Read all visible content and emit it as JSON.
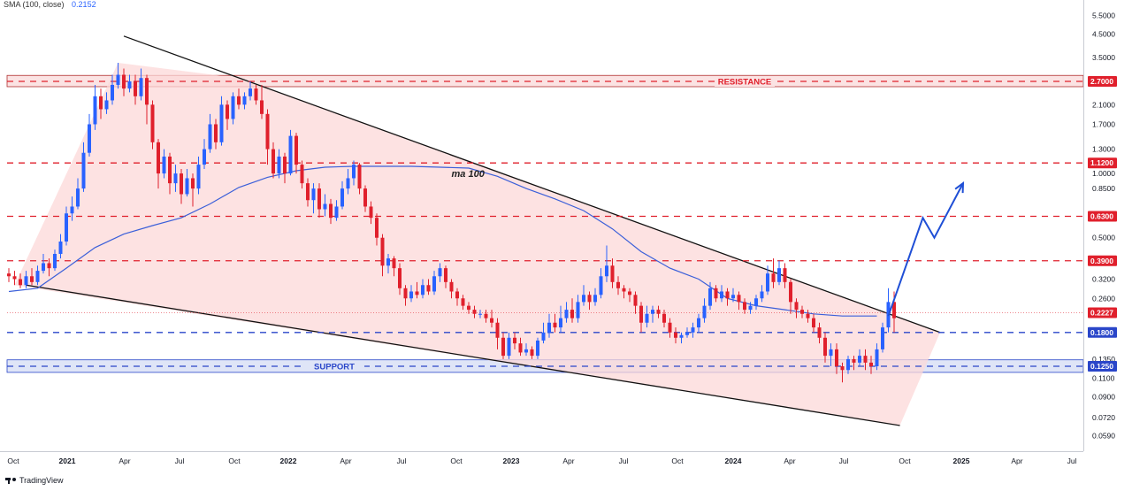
{
  "legend": {
    "label": "SMA (100, close)",
    "value": "0.2152"
  },
  "footer": {
    "brand": "TradingView"
  },
  "colors": {
    "up": "#2962ff",
    "down": "#e0202c",
    "sma": "#3b5fd9",
    "wedge": "#fcd8d8",
    "resistance_zone": "#fbe3e3",
    "support_zone": "#dfe5f7",
    "red_dash": "#e0202c",
    "blue_dash": "#2a46c9"
  },
  "chart_data": {
    "type": "candlestick",
    "title": "",
    "scale": "log",
    "ylim": [
      0.055,
      6.0
    ],
    "x_ticks": [
      "Oct",
      "2021",
      "Apr",
      "Jul",
      "Oct",
      "2022",
      "Apr",
      "Jul",
      "Oct",
      "2023",
      "Apr",
      "Jul",
      "Oct",
      "2024",
      "Apr",
      "Jul",
      "Oct",
      "2025",
      "Apr",
      "Jul"
    ],
    "y_ticks": [
      "5.5000",
      "4.5000",
      "3.5000",
      "2.7000",
      "2.1000",
      "1.7000",
      "1.3000",
      "1.0000",
      "0.8500",
      "0.6300",
      "0.5000",
      "0.3900",
      "0.3200",
      "0.2600",
      "0.2227",
      "0.1800",
      "0.1350",
      "0.1250",
      "0.1100",
      "0.0900",
      "0.0720",
      "0.0590"
    ],
    "price_badges": [
      {
        "label": "2.7000",
        "value": 2.7,
        "kind": "red"
      },
      {
        "label": "1.1200",
        "value": 1.12,
        "kind": "red"
      },
      {
        "label": "0.6300",
        "value": 0.63,
        "kind": "red"
      },
      {
        "label": "0.3900",
        "value": 0.39,
        "kind": "red"
      },
      {
        "label": "0.2227",
        "value": 0.2227,
        "kind": "red"
      },
      {
        "label": "0.1800",
        "value": 0.18,
        "kind": "blue"
      },
      {
        "label": "0.1250",
        "value": 0.125,
        "kind": "blue"
      }
    ],
    "levels": [
      {
        "value": 2.7,
        "kind": "red"
      },
      {
        "value": 1.12,
        "kind": "red"
      },
      {
        "value": 0.63,
        "kind": "red"
      },
      {
        "value": 0.39,
        "kind": "red"
      },
      {
        "value": 0.18,
        "kind": "blue"
      },
      {
        "value": 0.125,
        "kind": "blue"
      }
    ],
    "zones": [
      {
        "label": "RESISTANCE",
        "low": 2.55,
        "high": 2.88,
        "kind": "resistance"
      },
      {
        "label": "SUPPORT",
        "low": 0.117,
        "high": 0.134,
        "kind": "support"
      }
    ],
    "annotations": [
      {
        "label": "ma 100",
        "t": 77,
        "value": 1.0
      }
    ],
    "wedge": {
      "upper": [
        {
          "t": 20,
          "value": 4.4
        },
        {
          "t": 162,
          "value": 0.18
        }
      ],
      "lower": [
        {
          "t": 3,
          "value": 0.3
        },
        {
          "t": 155,
          "value": 0.066
        }
      ],
      "fill": [
        {
          "t": 1,
          "value": 0.3
        },
        {
          "t": 19,
          "value": 3.3
        },
        {
          "t": 40,
          "value": 2.8
        },
        {
          "t": 162,
          "value": 0.18
        },
        {
          "t": 155,
          "value": 0.066
        }
      ]
    },
    "projection": [
      {
        "t": 153,
        "value": 0.215
      },
      {
        "t": 159,
        "value": 0.62
      },
      {
        "t": 161,
        "value": 0.5
      },
      {
        "t": 166,
        "value": 0.9
      }
    ],
    "sma": [
      {
        "t": 0,
        "value": 0.28
      },
      {
        "t": 5,
        "value": 0.29
      },
      {
        "t": 10,
        "value": 0.36
      },
      {
        "t": 15,
        "value": 0.45
      },
      {
        "t": 20,
        "value": 0.52
      },
      {
        "t": 25,
        "value": 0.57
      },
      {
        "t": 30,
        "value": 0.62
      },
      {
        "t": 35,
        "value": 0.72
      },
      {
        "t": 40,
        "value": 0.86
      },
      {
        "t": 45,
        "value": 0.96
      },
      {
        "t": 50,
        "value": 1.03
      },
      {
        "t": 55,
        "value": 1.07
      },
      {
        "t": 60,
        "value": 1.08
      },
      {
        "t": 65,
        "value": 1.08
      },
      {
        "t": 70,
        "value": 1.08
      },
      {
        "t": 75,
        "value": 1.07
      },
      {
        "t": 80,
        "value": 1.06
      },
      {
        "t": 85,
        "value": 0.97
      },
      {
        "t": 90,
        "value": 0.85
      },
      {
        "t": 95,
        "value": 0.76
      },
      {
        "t": 100,
        "value": 0.67
      },
      {
        "t": 105,
        "value": 0.55
      },
      {
        "t": 110,
        "value": 0.43
      },
      {
        "t": 115,
        "value": 0.36
      },
      {
        "t": 120,
        "value": 0.32
      },
      {
        "t": 125,
        "value": 0.26
      },
      {
        "t": 130,
        "value": 0.24
      },
      {
        "t": 135,
        "value": 0.23
      },
      {
        "t": 140,
        "value": 0.22
      },
      {
        "t": 145,
        "value": 0.215
      },
      {
        "t": 151,
        "value": 0.215
      }
    ],
    "candles": [
      [
        0.34,
        0.33,
        0.36,
        0.31
      ],
      [
        0.33,
        0.32,
        0.35,
        0.3
      ],
      [
        0.32,
        0.3,
        0.34,
        0.29
      ],
      [
        0.3,
        0.33,
        0.35,
        0.29
      ],
      [
        0.33,
        0.31,
        0.36,
        0.3
      ],
      [
        0.31,
        0.35,
        0.37,
        0.3
      ],
      [
        0.35,
        0.38,
        0.42,
        0.34
      ],
      [
        0.38,
        0.36,
        0.4,
        0.33
      ],
      [
        0.36,
        0.42,
        0.44,
        0.35
      ],
      [
        0.42,
        0.48,
        0.52,
        0.4
      ],
      [
        0.48,
        0.65,
        0.7,
        0.46
      ],
      [
        0.65,
        0.7,
        0.78,
        0.6
      ],
      [
        0.7,
        0.85,
        0.95,
        0.68
      ],
      [
        0.85,
        1.25,
        1.4,
        0.82
      ],
      [
        1.25,
        1.7,
        1.9,
        1.2
      ],
      [
        1.7,
        2.3,
        2.6,
        1.6
      ],
      [
        2.3,
        2.0,
        2.5,
        1.8
      ],
      [
        2.0,
        2.2,
        2.4,
        1.9
      ],
      [
        2.2,
        2.6,
        2.9,
        2.1
      ],
      [
        2.6,
        2.9,
        3.3,
        2.5
      ],
      [
        2.9,
        2.5,
        3.1,
        2.3
      ],
      [
        2.5,
        2.7,
        2.9,
        2.4
      ],
      [
        2.7,
        2.3,
        2.9,
        2.1
      ],
      [
        2.3,
        2.8,
        3.1,
        2.2
      ],
      [
        2.8,
        2.1,
        2.9,
        1.7
      ],
      [
        2.1,
        1.4,
        2.2,
        1.3
      ],
      [
        1.4,
        1.0,
        1.45,
        0.85
      ],
      [
        1.0,
        1.2,
        1.3,
        0.95
      ],
      [
        1.2,
        0.9,
        1.25,
        0.8
      ],
      [
        0.9,
        1.0,
        1.1,
        0.82
      ],
      [
        1.0,
        0.8,
        1.05,
        0.72
      ],
      [
        0.8,
        0.95,
        1.05,
        0.78
      ],
      [
        0.95,
        0.85,
        1.0,
        0.7
      ],
      [
        0.85,
        1.1,
        1.2,
        0.8
      ],
      [
        1.1,
        1.3,
        1.45,
        1.05
      ],
      [
        1.3,
        1.7,
        1.9,
        1.25
      ],
      [
        1.7,
        1.4,
        1.8,
        1.3
      ],
      [
        1.4,
        2.1,
        2.3,
        1.35
      ],
      [
        2.1,
        1.8,
        2.2,
        1.6
      ],
      [
        1.8,
        2.3,
        2.4,
        1.7
      ],
      [
        2.3,
        2.1,
        2.5,
        2.0
      ],
      [
        2.1,
        2.3,
        2.4,
        2.0
      ],
      [
        2.3,
        2.5,
        2.7,
        2.2
      ],
      [
        2.5,
        2.2,
        2.6,
        2.1
      ],
      [
        2.2,
        1.9,
        2.6,
        1.8
      ],
      [
        1.9,
        1.3,
        2.0,
        1.1
      ],
      [
        1.3,
        1.0,
        1.4,
        0.95
      ],
      [
        1.0,
        1.2,
        1.3,
        0.95
      ],
      [
        1.2,
        1.0,
        1.25,
        0.9
      ],
      [
        1.0,
        1.5,
        1.6,
        0.98
      ],
      [
        1.5,
        1.1,
        1.55,
        1.0
      ],
      [
        1.1,
        0.9,
        1.15,
        0.85
      ],
      [
        0.9,
        0.75,
        0.95,
        0.7
      ],
      [
        0.75,
        0.85,
        0.9,
        0.65
      ],
      [
        0.85,
        0.68,
        0.9,
        0.62
      ],
      [
        0.68,
        0.72,
        0.8,
        0.63
      ],
      [
        0.72,
        0.62,
        0.76,
        0.58
      ],
      [
        0.62,
        0.7,
        0.75,
        0.6
      ],
      [
        0.7,
        0.85,
        0.92,
        0.68
      ],
      [
        0.85,
        0.95,
        1.05,
        0.8
      ],
      [
        0.95,
        1.1,
        1.15,
        0.88
      ],
      [
        1.1,
        0.85,
        1.12,
        0.8
      ],
      [
        0.85,
        0.7,
        0.88,
        0.66
      ],
      [
        0.7,
        0.62,
        0.74,
        0.58
      ],
      [
        0.62,
        0.5,
        0.65,
        0.46
      ],
      [
        0.5,
        0.37,
        0.52,
        0.33
      ],
      [
        0.37,
        0.4,
        0.42,
        0.34
      ],
      [
        0.4,
        0.36,
        0.41,
        0.33
      ],
      [
        0.36,
        0.29,
        0.38,
        0.27
      ],
      [
        0.29,
        0.26,
        0.3,
        0.24
      ],
      [
        0.26,
        0.28,
        0.3,
        0.25
      ],
      [
        0.28,
        0.27,
        0.31,
        0.26
      ],
      [
        0.27,
        0.3,
        0.32,
        0.26
      ],
      [
        0.3,
        0.28,
        0.32,
        0.27
      ],
      [
        0.28,
        0.33,
        0.35,
        0.27
      ],
      [
        0.33,
        0.36,
        0.38,
        0.31
      ],
      [
        0.36,
        0.31,
        0.37,
        0.29
      ],
      [
        0.31,
        0.28,
        0.32,
        0.26
      ],
      [
        0.28,
        0.26,
        0.29,
        0.24
      ],
      [
        0.26,
        0.24,
        0.27,
        0.23
      ],
      [
        0.24,
        0.23,
        0.25,
        0.22
      ],
      [
        0.23,
        0.22,
        0.24,
        0.21
      ],
      [
        0.22,
        0.22,
        0.23,
        0.21
      ],
      [
        0.22,
        0.21,
        0.23,
        0.2
      ],
      [
        0.21,
        0.2,
        0.23,
        0.19
      ],
      [
        0.2,
        0.17,
        0.21,
        0.15
      ],
      [
        0.17,
        0.14,
        0.18,
        0.135
      ],
      [
        0.14,
        0.17,
        0.18,
        0.135
      ],
      [
        0.17,
        0.16,
        0.18,
        0.15
      ],
      [
        0.16,
        0.145,
        0.17,
        0.14
      ],
      [
        0.145,
        0.15,
        0.16,
        0.14
      ],
      [
        0.15,
        0.14,
        0.155,
        0.135
      ],
      [
        0.14,
        0.165,
        0.17,
        0.135
      ],
      [
        0.165,
        0.18,
        0.2,
        0.16
      ],
      [
        0.18,
        0.2,
        0.22,
        0.17
      ],
      [
        0.2,
        0.19,
        0.22,
        0.18
      ],
      [
        0.19,
        0.21,
        0.24,
        0.18
      ],
      [
        0.21,
        0.23,
        0.25,
        0.2
      ],
      [
        0.23,
        0.21,
        0.26,
        0.2
      ],
      [
        0.21,
        0.25,
        0.27,
        0.2
      ],
      [
        0.25,
        0.27,
        0.3,
        0.24
      ],
      [
        0.27,
        0.25,
        0.28,
        0.23
      ],
      [
        0.25,
        0.27,
        0.29,
        0.24
      ],
      [
        0.27,
        0.33,
        0.36,
        0.26
      ],
      [
        0.33,
        0.37,
        0.46,
        0.31
      ],
      [
        0.37,
        0.31,
        0.4,
        0.29
      ],
      [
        0.31,
        0.29,
        0.33,
        0.27
      ],
      [
        0.29,
        0.28,
        0.3,
        0.26
      ],
      [
        0.28,
        0.27,
        0.29,
        0.25
      ],
      [
        0.27,
        0.24,
        0.28,
        0.22
      ],
      [
        0.24,
        0.2,
        0.25,
        0.18
      ],
      [
        0.2,
        0.22,
        0.24,
        0.19
      ],
      [
        0.22,
        0.23,
        0.24,
        0.2
      ],
      [
        0.23,
        0.22,
        0.24,
        0.21
      ],
      [
        0.22,
        0.2,
        0.23,
        0.19
      ],
      [
        0.2,
        0.18,
        0.21,
        0.17
      ],
      [
        0.18,
        0.17,
        0.19,
        0.16
      ],
      [
        0.17,
        0.175,
        0.18,
        0.16
      ],
      [
        0.175,
        0.18,
        0.19,
        0.17
      ],
      [
        0.18,
        0.19,
        0.2,
        0.17
      ],
      [
        0.19,
        0.21,
        0.22,
        0.18
      ],
      [
        0.21,
        0.24,
        0.26,
        0.2
      ],
      [
        0.24,
        0.29,
        0.31,
        0.23
      ],
      [
        0.29,
        0.26,
        0.3,
        0.25
      ],
      [
        0.26,
        0.28,
        0.3,
        0.25
      ],
      [
        0.28,
        0.26,
        0.29,
        0.24
      ],
      [
        0.26,
        0.27,
        0.29,
        0.25
      ],
      [
        0.27,
        0.25,
        0.28,
        0.23
      ],
      [
        0.25,
        0.23,
        0.26,
        0.22
      ],
      [
        0.23,
        0.24,
        0.25,
        0.22
      ],
      [
        0.24,
        0.26,
        0.27,
        0.23
      ],
      [
        0.26,
        0.28,
        0.3,
        0.25
      ],
      [
        0.28,
        0.34,
        0.37,
        0.27
      ],
      [
        0.34,
        0.31,
        0.4,
        0.29
      ],
      [
        0.31,
        0.36,
        0.39,
        0.3
      ],
      [
        0.36,
        0.31,
        0.38,
        0.29
      ],
      [
        0.31,
        0.25,
        0.32,
        0.22
      ],
      [
        0.25,
        0.23,
        0.26,
        0.21
      ],
      [
        0.23,
        0.22,
        0.24,
        0.21
      ],
      [
        0.22,
        0.21,
        0.23,
        0.2
      ],
      [
        0.21,
        0.19,
        0.22,
        0.18
      ],
      [
        0.19,
        0.17,
        0.2,
        0.16
      ],
      [
        0.17,
        0.14,
        0.18,
        0.13
      ],
      [
        0.14,
        0.15,
        0.16,
        0.125
      ],
      [
        0.15,
        0.125,
        0.16,
        0.115
      ],
      [
        0.125,
        0.12,
        0.13,
        0.105
      ],
      [
        0.12,
        0.135,
        0.14,
        0.115
      ],
      [
        0.135,
        0.13,
        0.14,
        0.12
      ],
      [
        0.13,
        0.14,
        0.15,
        0.125
      ],
      [
        0.14,
        0.13,
        0.15,
        0.12
      ],
      [
        0.13,
        0.125,
        0.14,
        0.115
      ],
      [
        0.125,
        0.15,
        0.16,
        0.12
      ],
      [
        0.15,
        0.19,
        0.2,
        0.145
      ],
      [
        0.19,
        0.25,
        0.29,
        0.18
      ],
      [
        0.25,
        0.21,
        0.28,
        0.18
      ]
    ]
  }
}
